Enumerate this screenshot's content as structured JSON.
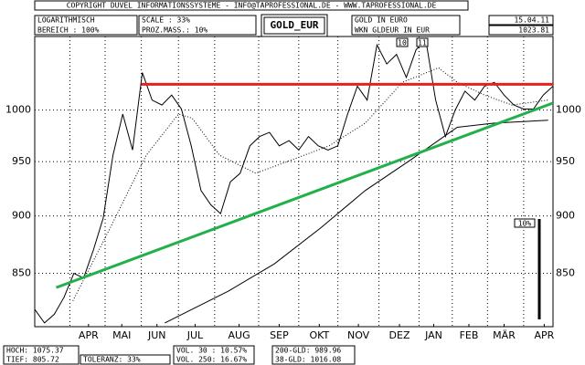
{
  "header": {
    "copyright": "COPYRIGHT DUVEL INFORMATIONSSYSTEME - INFO@TAPROFESSIONAL.DE - WWW.TAPROFESSIONAL.DE",
    "date": "15.04.11",
    "scale_mode": "LOGARITHMISCH",
    "range": "BEREICH : 100%",
    "scale": "SCALE : 33%",
    "proz_mass": "PROZ.MASS.: 10%",
    "symbol": "GOLD_EUR",
    "description": "GOLD IN EURO",
    "wkn": "WKN GLDEUR IN EUR",
    "last": "1023.81"
  },
  "footer": {
    "high": "HOCH: 1075.37",
    "low": "TIEF: 805.72",
    "tolerance": "TOLERANZ: 33%",
    "vol30": "VOL. 30 : 10.57%",
    "vol250": "VOL. 250: 16.67%",
    "gld200": "200-GLD: 989.96",
    "gld38": "38-GLD: 1016.08"
  },
  "chart_data": {
    "type": "line",
    "log_scale": true,
    "grid": true,
    "ylim": [
      806,
      1076
    ],
    "yticks": [
      850,
      900,
      950,
      1000
    ],
    "xlim": [
      0,
      53
    ],
    "xticks": [
      {
        "value": 5.5,
        "label": "APR"
      },
      {
        "value": 8.9,
        "label": "MAI"
      },
      {
        "value": 12.5,
        "label": "JUN"
      },
      {
        "value": 16.4,
        "label": "JUL"
      },
      {
        "value": 20.9,
        "label": "AUG"
      },
      {
        "value": 25,
        "label": "SEP"
      },
      {
        "value": 29.1,
        "label": "OKT"
      },
      {
        "value": 33.1,
        "label": "NOV"
      },
      {
        "value": 37.3,
        "label": "DEZ"
      },
      {
        "value": 40.8,
        "label": "JAN"
      },
      {
        "value": 44.4,
        "label": "FEB"
      },
      {
        "value": 48,
        "label": "MÄR"
      },
      {
        "value": 52.1,
        "label": "APR"
      }
    ],
    "xgrid": [
      3.6,
      7.2,
      10.9,
      14.7,
      18.4,
      22.9,
      27,
      31,
      35.2,
      39.3,
      42.7,
      46.3,
      50
    ],
    "annotations": [
      "10",
      "11"
    ],
    "vol_scale_label": "10%",
    "series": [
      {
        "color": "#000000",
        "width": 1,
        "style": "solid",
        "x": [
          0,
          1,
          2,
          3,
          4,
          5,
          6,
          7,
          8,
          9,
          10,
          11,
          12,
          13,
          14,
          15,
          16,
          17,
          18,
          19,
          20,
          21,
          22,
          23,
          24,
          25,
          26,
          27,
          28,
          29,
          30,
          31,
          32,
          33,
          34,
          35,
          36,
          37,
          38,
          39,
          40,
          41,
          42,
          43,
          44,
          45,
          46,
          47,
          48,
          49,
          50,
          51,
          52,
          53
        ],
        "values": [
          820,
          809,
          816,
          830,
          850,
          846,
          870,
          898,
          956,
          996,
          961,
          1038,
          1010,
          1005,
          1015,
          1001,
          965,
          923,
          910,
          902,
          931,
          939,
          965,
          974,
          978,
          965,
          970,
          961,
          974,
          965,
          961,
          965,
          996,
          1024,
          1010,
          1067,
          1047,
          1057,
          1033,
          1062,
          1072,
          1010,
          974,
          1000,
          1019,
          1010,
          1024,
          1028,
          1015,
          1005,
          1001,
          1001,
          1015,
          1024
        ]
      },
      {
        "color": "#000000",
        "width": 1,
        "style": "dotted",
        "x": [
          3.9,
          7.7,
          11.4,
          14.7,
          16.1,
          18.9,
          22.6,
          26.4,
          30.1,
          33.8,
          37.6,
          41.3,
          43.2,
          46,
          48.8,
          52.5
        ],
        "values": [
          827,
          889,
          956,
          996,
          992,
          956,
          939,
          952,
          965,
          987,
          1028,
          1043,
          1028,
          1015,
          1005,
          1010
        ]
      },
      {
        "color": "#000000",
        "width": 1,
        "style": "solid",
        "x": [
          13.3,
          19.8,
          24.5,
          29.2,
          33.8,
          38.5,
          43.2,
          46.9,
          52.5
        ],
        "values": [
          809,
          835,
          858,
          889,
          923,
          952,
          983,
          987,
          990
        ]
      },
      {
        "color": "#e8201c",
        "width": 3,
        "style": "solid",
        "x": [
          10.9,
          53
        ],
        "values": [
          1026,
          1026
        ]
      },
      {
        "color": "#22b04a",
        "width": 3,
        "style": "solid",
        "x": [
          2.2,
          53
        ],
        "values": [
          838,
          1007
        ]
      }
    ]
  }
}
